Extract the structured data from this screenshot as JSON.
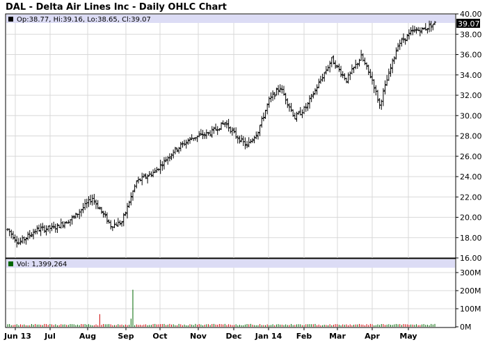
{
  "chart_data": [
    {
      "type": "ohlc",
      "title": "DAL - Delta Air Lines Inc - Daily OHLC Chart",
      "legend": "Op:38.77, Hi:39.16, Lo:38.65, Cl:39.07",
      "last_value_label": "39.07",
      "y_ticks": [
        "16.00",
        "18.00",
        "20.00",
        "22.00",
        "24.00",
        "26.00",
        "28.00",
        "30.00",
        "32.00",
        "34.00",
        "36.00",
        "38.00",
        "40.00"
      ],
      "ylim": [
        16,
        40
      ],
      "x_labels": [
        "Jun 13",
        "Jul",
        "Aug",
        "Sep",
        "Oct",
        "Nov",
        "Dec",
        "Jan 14",
        "Feb",
        "Mar",
        "Apr",
        "May"
      ],
      "series_trend": {
        "description_points": [
          {
            "t": 0,
            "v": 18.8
          },
          {
            "t": 6,
            "v": 17.5
          },
          {
            "t": 16,
            "v": 18.8
          },
          {
            "t": 26,
            "v": 19.0
          },
          {
            "t": 36,
            "v": 20.0
          },
          {
            "t": 46,
            "v": 21.9
          },
          {
            "t": 56,
            "v": 19.2
          },
          {
            "t": 62,
            "v": 19.5
          },
          {
            "t": 70,
            "v": 23.5
          },
          {
            "t": 80,
            "v": 24.5
          },
          {
            "t": 90,
            "v": 26.5
          },
          {
            "t": 100,
            "v": 27.8
          },
          {
            "t": 110,
            "v": 28.3
          },
          {
            "t": 118,
            "v": 29.3
          },
          {
            "t": 124,
            "v": 28.0
          },
          {
            "t": 130,
            "v": 27.0
          },
          {
            "t": 136,
            "v": 28.5
          },
          {
            "t": 142,
            "v": 31.5
          },
          {
            "t": 148,
            "v": 32.8
          },
          {
            "t": 156,
            "v": 29.8
          },
          {
            "t": 162,
            "v": 30.8
          },
          {
            "t": 170,
            "v": 33.5
          },
          {
            "t": 176,
            "v": 35.5
          },
          {
            "t": 184,
            "v": 33.5
          },
          {
            "t": 192,
            "v": 35.8
          },
          {
            "t": 198,
            "v": 33.5
          },
          {
            "t": 202,
            "v": 31.0
          },
          {
            "t": 206,
            "v": 33.5
          },
          {
            "t": 212,
            "v": 37.0
          },
          {
            "t": 220,
            "v": 38.3
          },
          {
            "t": 226,
            "v": 38.5
          },
          {
            "t": 232,
            "v": 39.07
          }
        ]
      }
    },
    {
      "type": "bar",
      "legend": "Vol: 1,399,264",
      "y_ticks": [
        "0M",
        "100M",
        "200M",
        "300M"
      ],
      "ylim": [
        0,
        300
      ],
      "spikes": [
        {
          "t": 50,
          "v": 70,
          "color": "#cc0000"
        },
        {
          "t": 68,
          "v": 205,
          "color": "#006600"
        },
        {
          "t": 67,
          "v": 45,
          "color": "#006600"
        }
      ],
      "baseline_volume": 8
    }
  ]
}
